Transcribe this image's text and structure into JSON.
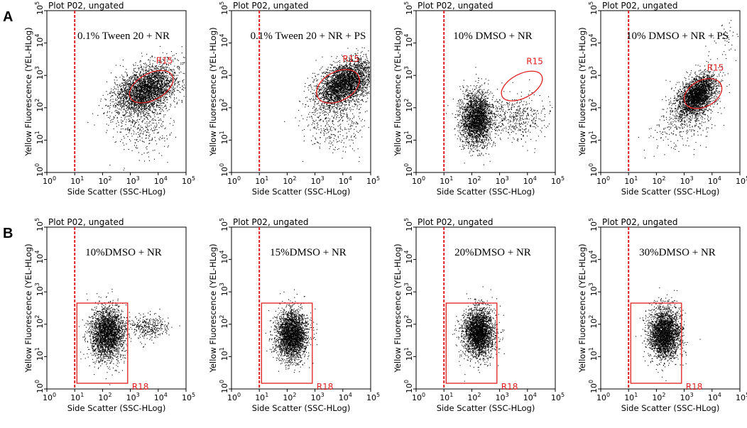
{
  "figure": {
    "panels": [
      {
        "letter": "A"
      },
      {
        "letter": "B"
      }
    ]
  },
  "axes": {
    "xlabel": "Side Scatter (SSC-HLog)",
    "ylabel": "Yellow Fluorescence (YEL-HLog)",
    "xlim": [
      1,
      100000
    ],
    "ylim": [
      1,
      100000
    ],
    "tick_base": "10",
    "tick_exponents": [
      "0",
      "1",
      "2",
      "3",
      "4",
      "5"
    ]
  },
  "colors": {
    "gate": "#e02020",
    "events": "#000000"
  },
  "chart_data": [
    {
      "type": "scatter",
      "row": "A",
      "title": "Plot P02, ungated",
      "condition": "0.1% Tween 20 + NR",
      "threshold_x": 10,
      "gate": {
        "name": "R15",
        "shape": "ellipse",
        "center": [
          5000,
          450
        ],
        "x_range": [
          800,
          40000
        ],
        "y_range": [
          80,
          2500
        ]
      },
      "populations": [
        {
          "x_center": 3500,
          "y_center": 350,
          "spread_x_decades": 0.55,
          "spread_y_decades": 0.35,
          "tilt": 0.5,
          "count": 3200
        },
        {
          "x_center": 3000,
          "y_center": 25,
          "spread_x_decades": 0.6,
          "spread_y_decades": 0.45,
          "tilt": 0,
          "count": 350
        }
      ]
    },
    {
      "type": "scatter",
      "row": "A",
      "title": "Plot P02, ungated",
      "condition": "0.1% Tween 20 + NR + PS",
      "threshold_x": 10,
      "gate": {
        "name": "R15",
        "shape": "ellipse",
        "center": [
          6000,
          500
        ],
        "x_range": [
          1000,
          45000
        ],
        "y_range": [
          70,
          3000
        ]
      },
      "populations": [
        {
          "x_center": 12000,
          "y_center": 550,
          "spread_x_decades": 0.5,
          "spread_y_decades": 0.33,
          "tilt": 0.6,
          "count": 3300
        },
        {
          "x_center": 5000,
          "y_center": 30,
          "spread_x_decades": 0.6,
          "spread_y_decades": 0.45,
          "tilt": 0,
          "count": 350
        }
      ]
    },
    {
      "type": "scatter",
      "row": "A",
      "title": "Plot P02, ungated",
      "condition": "10% DMSO + NR",
      "threshold_x": 10,
      "gate": {
        "name": "R15",
        "shape": "ellipse",
        "center": [
          4000,
          450
        ],
        "x_range": [
          1000,
          40000
        ],
        "y_range": [
          100,
          2200
        ]
      },
      "populations": [
        {
          "x_center": 150,
          "y_center": 45,
          "spread_x_decades": 0.28,
          "spread_y_decades": 0.42,
          "tilt": 0,
          "count": 2600
        },
        {
          "x_center": 4000,
          "y_center": 50,
          "spread_x_decades": 0.5,
          "spread_y_decades": 0.35,
          "tilt": 0,
          "count": 450
        }
      ]
    },
    {
      "type": "scatter",
      "row": "A",
      "title": "Plot P02, ungated",
      "condition": "10% DMSO + NR + PS",
      "threshold_x": 10,
      "gate": {
        "name": "R15",
        "shape": "ellipse",
        "center": [
          3500,
          280
        ],
        "x_range": [
          900,
          25000
        ],
        "y_range": [
          50,
          1500
        ]
      },
      "populations": [
        {
          "x_center": 3000,
          "y_center": 250,
          "spread_x_decades": 0.33,
          "spread_y_decades": 0.28,
          "tilt": 0.8,
          "count": 2600
        },
        {
          "x_center": 1200,
          "y_center": 60,
          "spread_x_decades": 0.55,
          "spread_y_decades": 0.45,
          "tilt": 0.6,
          "count": 500
        },
        {
          "x_center": 30000,
          "y_center": 8000,
          "spread_x_decades": 0.35,
          "spread_y_decades": 0.35,
          "tilt": 1,
          "count": 50
        }
      ]
    },
    {
      "type": "scatter",
      "row": "B",
      "title": "Plot P02, ungated",
      "condition": "10%DMSO + NR",
      "threshold_x": 10,
      "gate": {
        "name": "R18",
        "shape": "rectangle",
        "x_range": [
          12,
          800
        ],
        "y_range": [
          1.5,
          450
        ]
      },
      "populations": [
        {
          "x_center": 150,
          "y_center": 50,
          "spread_x_decades": 0.3,
          "spread_y_decades": 0.4,
          "tilt": 0,
          "count": 2600
        },
        {
          "x_center": 4000,
          "y_center": 80,
          "spread_x_decades": 0.4,
          "spread_y_decades": 0.18,
          "tilt": 0,
          "count": 350
        }
      ]
    },
    {
      "type": "scatter",
      "row": "B",
      "title": "Plot P02, ungated",
      "condition": "15%DMSO + NR",
      "threshold_x": 10,
      "gate": {
        "name": "R18",
        "shape": "rectangle",
        "x_range": [
          12,
          800
        ],
        "y_range": [
          1.5,
          450
        ]
      },
      "populations": [
        {
          "x_center": 150,
          "y_center": 45,
          "spread_x_decades": 0.28,
          "spread_y_decades": 0.38,
          "tilt": 0,
          "count": 2800
        }
      ]
    },
    {
      "type": "scatter",
      "row": "B",
      "title": "Plot P02, ungated",
      "condition": "20%DMSO + NR",
      "threshold_x": 10,
      "gate": {
        "name": "R18",
        "shape": "rectangle",
        "x_range": [
          12,
          800
        ],
        "y_range": [
          1.5,
          450
        ]
      },
      "populations": [
        {
          "x_center": 180,
          "y_center": 55,
          "spread_x_decades": 0.28,
          "spread_y_decades": 0.38,
          "tilt": 0,
          "count": 2800
        }
      ]
    },
    {
      "type": "scatter",
      "row": "B",
      "title": "Plot P02, ungated",
      "condition": "30%DMSO + NR",
      "threshold_x": 10,
      "gate": {
        "name": "R18",
        "shape": "rectangle",
        "x_range": [
          12,
          800
        ],
        "y_range": [
          1.5,
          450
        ]
      },
      "populations": [
        {
          "x_center": 200,
          "y_center": 50,
          "spread_x_decades": 0.28,
          "spread_y_decades": 0.38,
          "tilt": 0,
          "count": 2800
        }
      ]
    }
  ]
}
